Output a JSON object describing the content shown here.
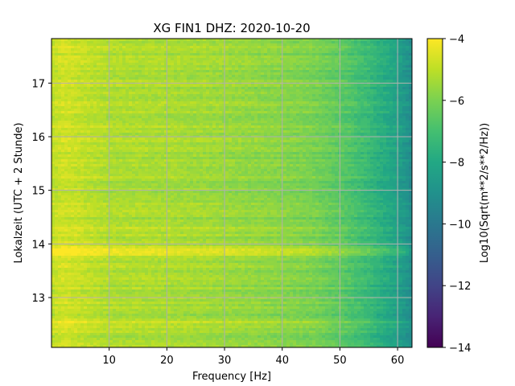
{
  "chart_data": {
    "type": "heatmap",
    "title": "XG FIN1  DHZ: 2020-10-20",
    "xlabel": "Frequency [Hz]",
    "ylabel": "Lokalzeit (UTC + 2 Stunde)",
    "colorbar_label": "Log10(Sqrt(m**2/s**2/Hz))",
    "colormap": "viridis",
    "grid": true,
    "xlim": [
      0,
      62.5
    ],
    "ylim": [
      17.83,
      12.07
    ],
    "clim": [
      -14,
      -4
    ],
    "x_ticks": [
      10,
      20,
      30,
      40,
      50,
      60
    ],
    "x_tick_labels": [
      "10",
      "20",
      "30",
      "40",
      "50",
      "60"
    ],
    "y_ticks": [
      13,
      14,
      15,
      16,
      17
    ],
    "y_tick_labels": [
      "13",
      "14",
      "15",
      "16",
      "17"
    ],
    "colorbar_ticks": [
      -4,
      -6,
      -8,
      -10,
      -12,
      -14
    ],
    "colorbar_tick_labels": [
      "−4",
      "−6",
      "−8",
      "−10",
      "−12",
      "−14"
    ],
    "frequency_profile": [
      {
        "hz": 0,
        "value": -5.0
      },
      {
        "hz": 2,
        "value": -4.7
      },
      {
        "hz": 10,
        "value": -5.2
      },
      {
        "hz": 20,
        "value": -5.3
      },
      {
        "hz": 30,
        "value": -5.5
      },
      {
        "hz": 40,
        "value": -5.8
      },
      {
        "hz": 45,
        "value": -6.0
      },
      {
        "hz": 50,
        "value": -6.5
      },
      {
        "hz": 55,
        "value": -7.3
      },
      {
        "hz": 60,
        "value": -8.3
      },
      {
        "hz": 62.5,
        "value": -9.2
      }
    ],
    "bands": [
      {
        "time_start": 13.78,
        "time_end": 13.95,
        "value_offset": 0.9
      },
      {
        "time_start": 12.52,
        "time_end": 12.56,
        "value_offset": 0.4
      },
      {
        "time_start": 14.25,
        "time_end": 14.3,
        "value_offset": 0.3
      }
    ]
  }
}
